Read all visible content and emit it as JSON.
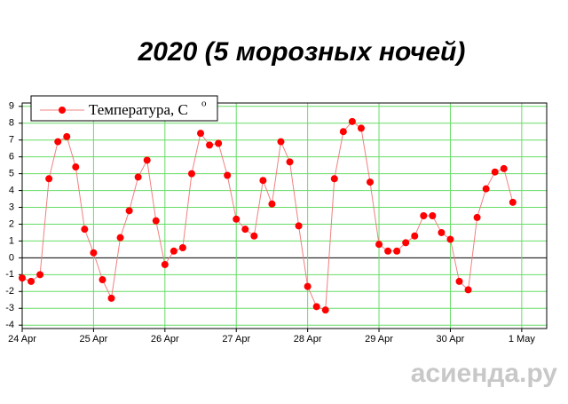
{
  "chart_data": {
    "type": "line",
    "title": "2020 (5 морозных ночей)",
    "x": [
      0,
      0.125,
      0.25,
      0.375,
      0.5,
      0.625,
      0.75,
      0.875,
      1,
      1.125,
      1.25,
      1.375,
      1.5,
      1.625,
      1.75,
      1.875,
      2,
      2.125,
      2.25,
      2.375,
      2.5,
      2.625,
      2.75,
      2.875,
      3,
      3.125,
      3.25,
      3.375,
      3.5,
      3.625,
      3.75,
      3.875,
      4,
      4.125,
      4.25,
      4.375,
      4.5,
      4.625,
      4.75,
      4.875,
      5,
      5.125,
      5.25,
      5.375,
      5.5,
      5.625,
      5.75,
      5.875,
      6,
      6.125,
      6.25,
      6.375,
      6.5,
      6.625,
      6.75,
      6.875
    ],
    "series": [
      {
        "name": "Температура, C",
        "color": "#ff0000",
        "line_color": "#f08080",
        "values": [
          -1.2,
          -1.4,
          -1.0,
          4.7,
          6.9,
          7.2,
          5.4,
          1.7,
          0.3,
          -1.3,
          -2.4,
          1.2,
          2.8,
          4.8,
          5.8,
          2.2,
          -0.4,
          0.4,
          0.6,
          5.0,
          7.4,
          6.7,
          6.8,
          4.9,
          2.3,
          1.7,
          1.3,
          4.6,
          3.2,
          6.9,
          5.7,
          1.9,
          -1.7,
          -2.9,
          -3.1,
          4.7,
          7.5,
          8.1,
          7.7,
          4.5,
          0.8,
          0.4,
          0.4,
          0.9,
          1.3,
          2.5,
          2.5,
          1.5,
          1.1,
          -1.4,
          -1.9,
          2.4,
          4.1,
          5.1,
          5.3,
          3.3
        ]
      }
    ],
    "legend_superscript": "o",
    "xlim": [
      0,
      7.35
    ],
    "xticks": [
      {
        "value": 0,
        "label": "24 Apr"
      },
      {
        "value": 1,
        "label": "25 Apr"
      },
      {
        "value": 2,
        "label": "26 Apr"
      },
      {
        "value": 3,
        "label": "27 Apr"
      },
      {
        "value": 4,
        "label": "28 Apr"
      },
      {
        "value": 5,
        "label": "29 Apr"
      },
      {
        "value": 6,
        "label": "30 Apr"
      },
      {
        "value": 7,
        "label": "1 May"
      }
    ],
    "ylim": [
      -4.2,
      9.2
    ],
    "yticks": [
      -4,
      -3,
      -2,
      -1,
      0,
      1,
      2,
      3,
      4,
      5,
      6,
      7,
      8,
      9
    ],
    "grid": true,
    "grid_color": "#66dd66",
    "watermark": "асиенда.ру"
  }
}
